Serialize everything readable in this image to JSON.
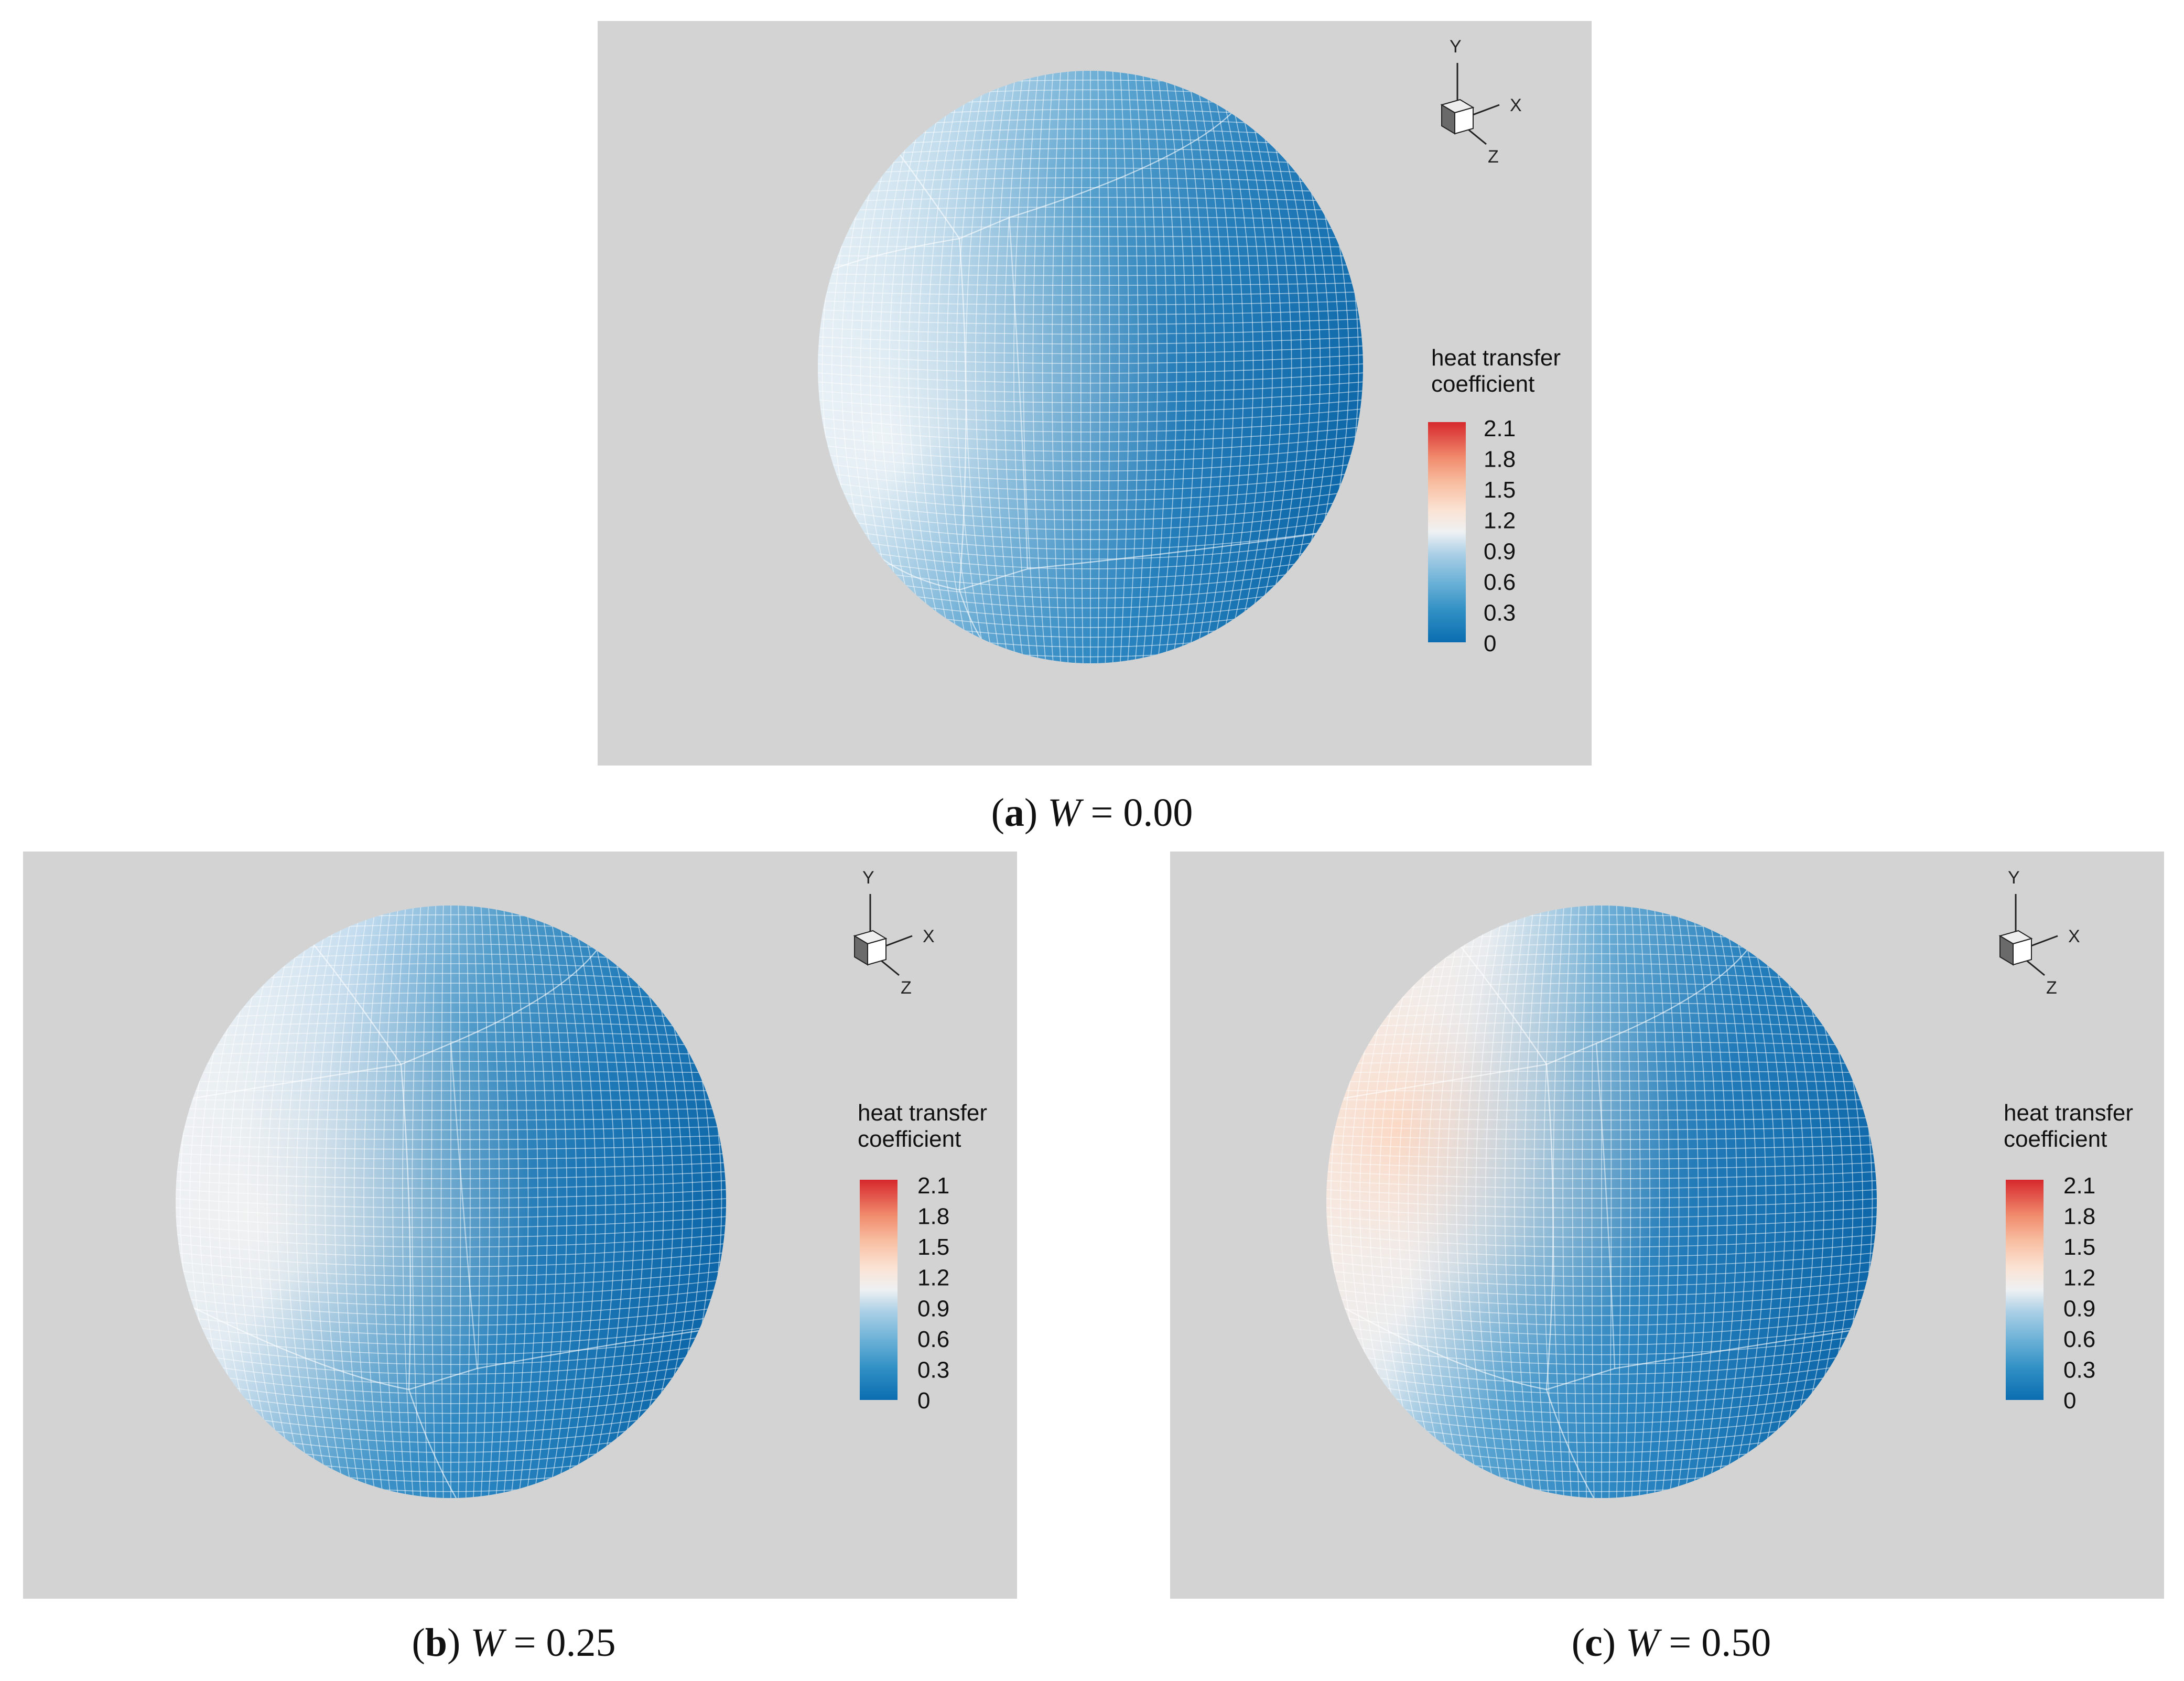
{
  "colors": {
    "background": "#d3d3d3",
    "page": "#ffffff",
    "grid_line": "#ffffff",
    "colormap": [
      "#0b6db0",
      "#2f8fc4",
      "#6fb3d8",
      "#aacfe6",
      "#dde9f1",
      "#f5f3f1",
      "#fbd6c0",
      "#f6a385",
      "#ec6e58",
      "#d6282d"
    ]
  },
  "panels": [
    {
      "id": "a",
      "caption_letter": "a",
      "caption_var": "W",
      "caption_eq": " = 0.00",
      "legend_title_line1": "heat transfer",
      "legend_title_line2": "coefficient",
      "tick_labels": [
        "2.1",
        "1.8",
        "1.5",
        "1.2",
        "0.9",
        "0.6",
        "0.3",
        "0"
      ],
      "axis_labels": {
        "y": "Y",
        "x": "X",
        "z": "Z"
      },
      "hot_spot_level": 0.45
    },
    {
      "id": "b",
      "caption_letter": "b",
      "caption_var": "W",
      "caption_eq": " = 0.25",
      "legend_title_line1": "heat transfer",
      "legend_title_line2": "coefficient",
      "tick_labels": [
        "2.1",
        "1.8",
        "1.5",
        "1.2",
        "0.9",
        "0.6",
        "0.3",
        "0"
      ],
      "axis_labels": {
        "y": "Y",
        "x": "X",
        "z": "Z"
      },
      "hot_spot_level": 0.6
    },
    {
      "id": "c",
      "caption_letter": "c",
      "caption_var": "W",
      "caption_eq": " = 0.50",
      "legend_title_line1": "heat transfer",
      "legend_title_line2": "coefficient",
      "tick_labels": [
        "2.1",
        "1.8",
        "1.5",
        "1.2",
        "0.9",
        "0.6",
        "0.3",
        "0"
      ],
      "axis_labels": {
        "y": "Y",
        "x": "X",
        "z": "Z"
      },
      "hot_spot_level": 0.92
    }
  ]
}
